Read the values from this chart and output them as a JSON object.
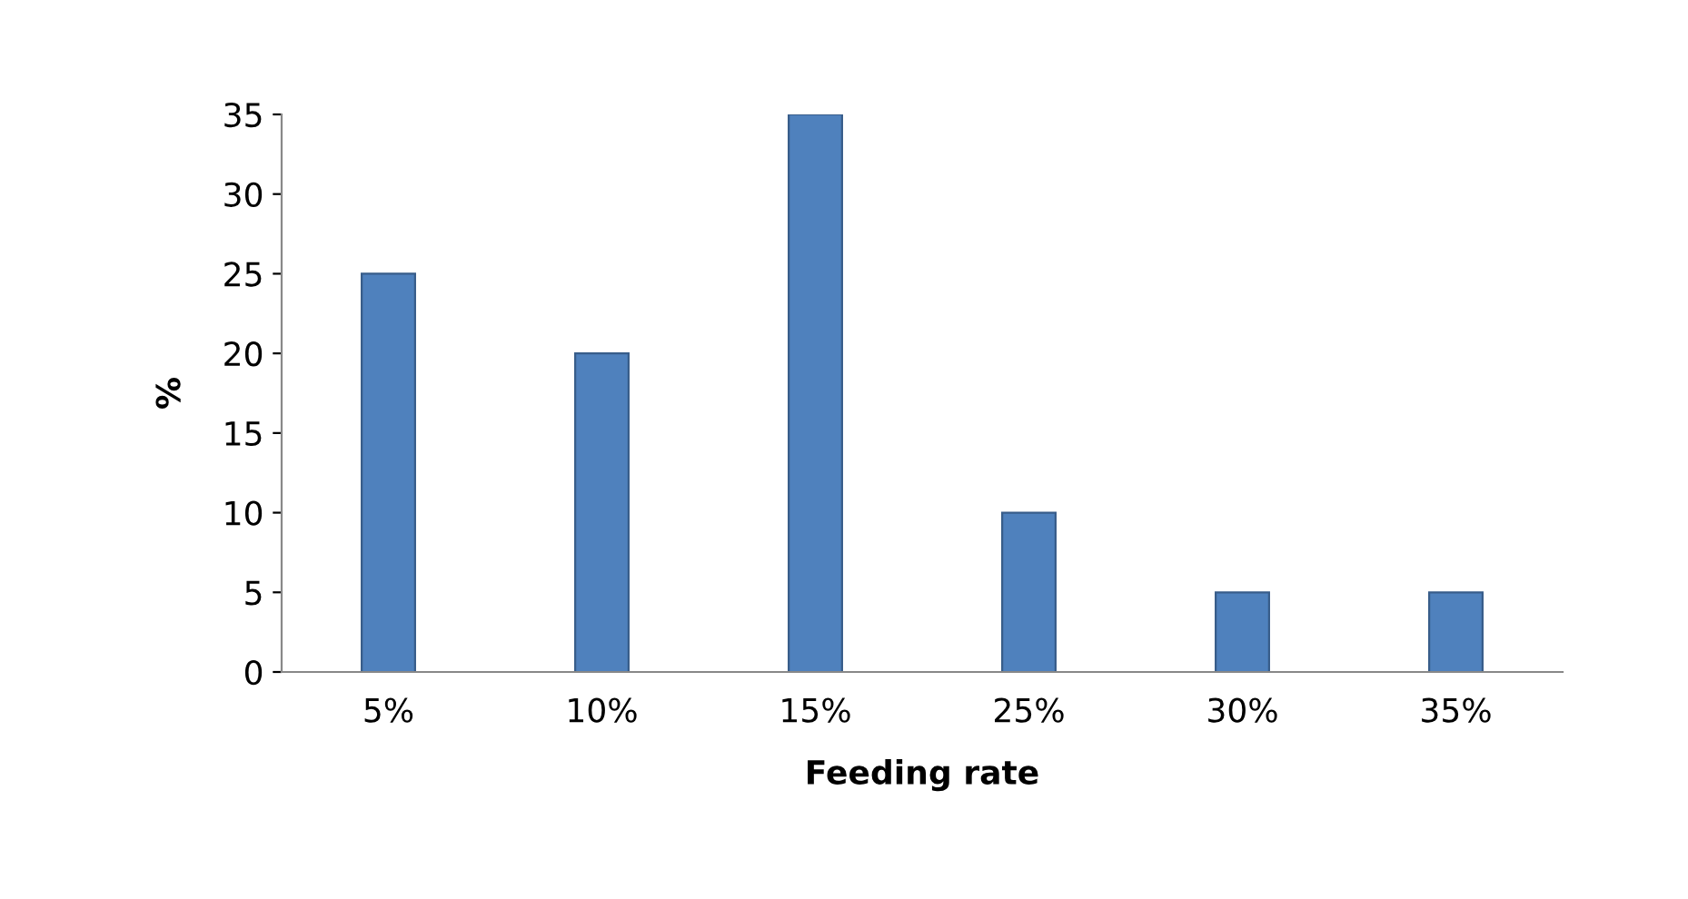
{
  "chart_data": {
    "type": "bar",
    "xlabel": "Feeding rate",
    "ylabel": "%",
    "categories": [
      "5%",
      "10%",
      "15%",
      "25%",
      "30%",
      "35%"
    ],
    "values": [
      25,
      20,
      35,
      10,
      5,
      5
    ],
    "color": "#4f81bd",
    "ylim": [
      0,
      35
    ],
    "yticks": [
      0,
      5,
      10,
      15,
      20,
      25,
      30,
      35
    ],
    "grid": false,
    "legend": false
  }
}
